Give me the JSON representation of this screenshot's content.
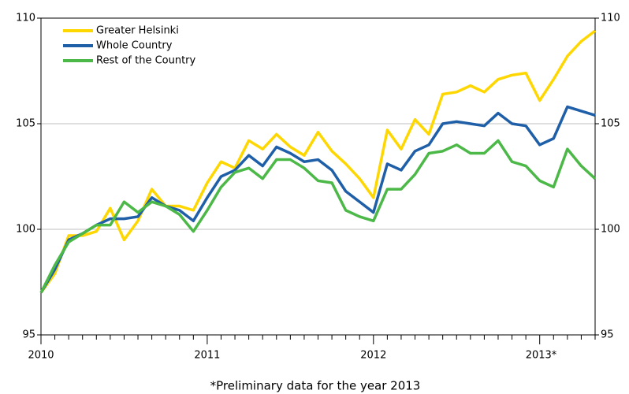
{
  "chart_data": {
    "type": "line",
    "footnote": "*Preliminary data for the year 2013",
    "categories": [
      "2010",
      null,
      null,
      null,
      null,
      null,
      null,
      null,
      null,
      null,
      null,
      null,
      "2011",
      null,
      null,
      null,
      null,
      null,
      null,
      null,
      null,
      null,
      null,
      null,
      "2012",
      null,
      null,
      null,
      null,
      null,
      null,
      null,
      null,
      null,
      null,
      null,
      "2013*",
      null,
      null,
      null,
      null
    ],
    "series": [
      {
        "name": "Greater Helsinki",
        "color": "#ffd700",
        "values": [
          97.0,
          97.9,
          99.7,
          99.7,
          99.9,
          101.0,
          99.5,
          100.4,
          101.9,
          101.1,
          101.1,
          100.9,
          102.2,
          103.2,
          102.9,
          104.2,
          103.8,
          104.5,
          103.9,
          103.5,
          104.6,
          103.7,
          103.1,
          102.4,
          101.5,
          104.7,
          103.8,
          105.2,
          104.5,
          106.4,
          106.5,
          106.8,
          106.5,
          107.1,
          107.3,
          107.4,
          106.1,
          107.1,
          108.2,
          108.9,
          109.4
        ]
      },
      {
        "name": "Whole Country",
        "color": "#1f5fa8",
        "values": [
          97.0,
          98.1,
          99.5,
          99.8,
          100.2,
          100.5,
          100.5,
          100.6,
          101.5,
          101.1,
          100.9,
          100.4,
          101.5,
          102.5,
          102.8,
          103.5,
          103.0,
          103.9,
          103.6,
          103.2,
          103.3,
          102.8,
          101.8,
          101.3,
          100.8,
          103.1,
          102.8,
          103.7,
          104.0,
          105.0,
          105.1,
          105.0,
          104.9,
          105.5,
          105.0,
          104.9,
          104.0,
          104.3,
          105.8,
          105.6,
          105.4
        ]
      },
      {
        "name": "Rest of the Country",
        "color": "#4cb848",
        "values": [
          97.0,
          98.3,
          99.4,
          99.8,
          100.2,
          100.2,
          101.3,
          100.8,
          101.3,
          101.1,
          100.7,
          99.9,
          100.9,
          102.0,
          102.7,
          102.9,
          102.4,
          103.3,
          103.3,
          102.9,
          102.3,
          102.2,
          100.9,
          100.6,
          100.4,
          101.9,
          101.9,
          102.6,
          103.6,
          103.7,
          104.0,
          103.6,
          103.6,
          104.2,
          103.2,
          103.0,
          102.3,
          102.0,
          103.8,
          103.0,
          102.4
        ]
      }
    ],
    "ylim": [
      95,
      110
    ],
    "yticks": [
      95,
      100,
      105,
      110
    ],
    "y2lim": [
      95,
      110
    ],
    "y2ticks": [
      95,
      100,
      105,
      110
    ],
    "grid": true,
    "legend": "top-left"
  }
}
